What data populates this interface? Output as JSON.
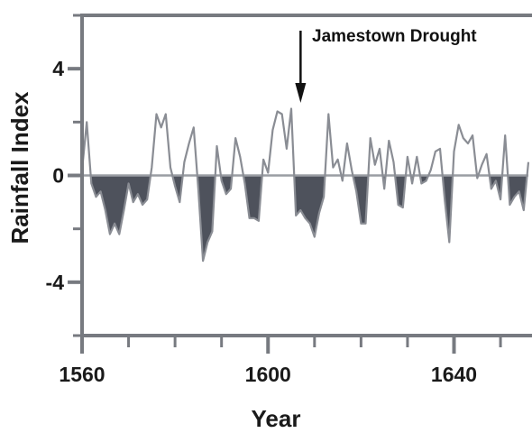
{
  "chart_data": {
    "type": "area",
    "xlabel": "Year",
    "ylabel": "Rainfall Index",
    "xlim": [
      1560,
      1656
    ],
    "ylim": [
      -6,
      6
    ],
    "x_ticks": [
      1560,
      1600,
      1640
    ],
    "y_ticks": [
      -4,
      0,
      4
    ],
    "x_minor_ticks": [
      1570,
      1580,
      1590,
      1610,
      1620,
      1630,
      1650
    ],
    "y_minor_ticks": [
      -6,
      -2,
      2,
      6
    ],
    "grid": false,
    "annotation": {
      "text": "Jamestown Drought",
      "x": 1607
    },
    "colors": {
      "negative_fill": "#4e525c",
      "line": "#8a8d94",
      "axis": "#777a80",
      "zero_line": "#9a9da3"
    },
    "series": [
      {
        "x": [
          1560,
          1561,
          1562,
          1563,
          1564,
          1565,
          1566,
          1567,
          1568,
          1569,
          1570,
          1571,
          1572,
          1573,
          1574,
          1575,
          1576,
          1577,
          1578,
          1579,
          1580,
          1581,
          1582,
          1583,
          1584,
          1585,
          1586,
          1587,
          1588,
          1589,
          1590,
          1591,
          1592,
          1593,
          1594,
          1595,
          1596,
          1597,
          1598,
          1599,
          1600,
          1601,
          1602,
          1603,
          1604,
          1605,
          1606,
          1607,
          1608,
          1609,
          1610,
          1611,
          1612,
          1613,
          1614,
          1615,
          1616,
          1617,
          1618,
          1619,
          1620,
          1621,
          1622,
          1623,
          1624,
          1625,
          1626,
          1627,
          1628,
          1629,
          1630,
          1631,
          1632,
          1633,
          1634,
          1635,
          1636,
          1637,
          1638,
          1639,
          1640,
          1641,
          1642,
          1643,
          1644,
          1645,
          1646,
          1647,
          1648,
          1649,
          1650,
          1651,
          1652,
          1653,
          1654,
          1655,
          1656
        ],
        "values": [
          0.2,
          2.0,
          -0.3,
          -0.8,
          -0.6,
          -1.3,
          -2.2,
          -1.8,
          -2.2,
          -1.3,
          -0.3,
          -1.0,
          -0.7,
          -1.1,
          -0.9,
          0.3,
          2.3,
          1.8,
          2.3,
          0.3,
          -0.4,
          -1.0,
          0.5,
          1.2,
          1.8,
          -0.5,
          -3.2,
          -2.5,
          -2.1,
          1.1,
          -0.2,
          -0.7,
          -0.5,
          1.4,
          0.7,
          -0.3,
          -1.6,
          -1.6,
          -1.7,
          0.6,
          0.1,
          1.7,
          2.4,
          2.3,
          1.0,
          2.5,
          -1.5,
          -1.3,
          -1.6,
          -1.8,
          -2.3,
          -1.4,
          -0.8,
          2.3,
          0.3,
          0.6,
          -0.2,
          1.2,
          0.2,
          -0.6,
          -1.8,
          -1.8,
          1.4,
          0.4,
          1.0,
          -0.5,
          1.3,
          0.5,
          -1.1,
          -1.2,
          0.7,
          -0.3,
          0.7,
          -0.3,
          -0.2,
          0.2,
          0.9,
          1.0,
          -0.9,
          -2.5,
          0.9,
          1.9,
          1.4,
          1.2,
          1.5,
          -0.1,
          0.4,
          0.8,
          -0.5,
          -0.2,
          -0.9,
          1.5,
          -1.1,
          -0.8,
          -0.6,
          -1.3,
          0.5
        ]
      }
    ]
  }
}
